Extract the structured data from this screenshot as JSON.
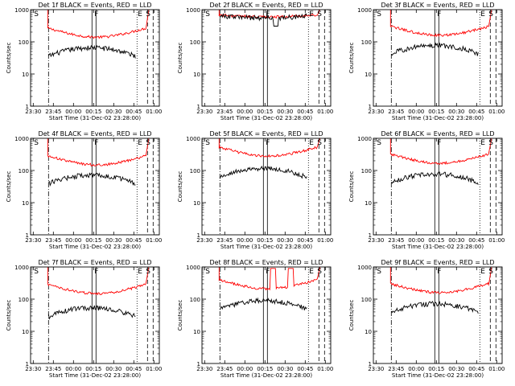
{
  "figure": {
    "layout": "3x3 grid"
  },
  "chart_data": [
    {
      "type": "line",
      "title": "Det 1f BLACK = Events, RED = LLD",
      "ylabel": "Counts/sec",
      "xlabel": "Start Time (31-Dec-02 23:28:00)",
      "x_tick_labels": [
        "23:30",
        "23:45",
        "00:00",
        "00:15",
        "00:30",
        "00:45",
        "01:00"
      ],
      "y_tick_labels": [
        "1",
        "10",
        "100",
        "1000"
      ],
      "ylim": [
        1,
        1000
      ],
      "y_scale": "log",
      "xlim": [
        23.467,
        25.067
      ],
      "x_ticks": [
        23.5,
        23.75,
        24.0,
        24.25,
        24.5,
        24.75,
        25.0
      ],
      "markers": [
        {
          "label": "S",
          "x": 23.5
        },
        {
          "label": "F",
          "x": 24.25
        },
        {
          "label": "E",
          "x": 24.79
        },
        {
          "label": "S",
          "x": 24.89
        }
      ],
      "vlines": [
        {
          "x": 23.69,
          "style": "dashdot"
        },
        {
          "x": 24.23,
          "style": "solid"
        },
        {
          "x": 24.28,
          "style": "solid"
        },
        {
          "x": 24.79,
          "style": "dotted"
        },
        {
          "x": 24.92,
          "style": "dashed"
        },
        {
          "x": 24.99,
          "style": "dashed"
        }
      ],
      "series": [
        {
          "name": "RED = LLD",
          "color": "#ff0000",
          "shape": "bowl",
          "start": 23.68,
          "end": 24.9,
          "level": 140,
          "bump": 0
        },
        {
          "name": "BLACK = Events",
          "color": "#000000",
          "shape": "hump",
          "start": 23.69,
          "end": 24.77,
          "level": 55,
          "bump": 0
        }
      ]
    },
    {
      "type": "line",
      "title": "Det 2f BLACK = Events, RED = LLD",
      "ylabel": "Counts/sec",
      "xlabel": "Start Time (31-Dec-02 23:28:00)",
      "x_tick_labels": [
        "23:30",
        "23:45",
        "00:00",
        "00:15",
        "00:30",
        "00:45",
        "01:00"
      ],
      "y_tick_labels": [
        "1",
        "10",
        "100",
        "1000"
      ],
      "ylim": [
        1,
        1000
      ],
      "y_scale": "log",
      "xlim": [
        23.467,
        25.067
      ],
      "x_ticks": [
        23.5,
        23.75,
        24.0,
        24.25,
        24.5,
        24.75,
        25.0
      ],
      "markers": [
        {
          "label": "S",
          "x": 23.5
        },
        {
          "label": "F",
          "x": 24.25
        },
        {
          "label": "E",
          "x": 24.79
        },
        {
          "label": "S",
          "x": 24.89
        }
      ],
      "vlines": [
        {
          "x": 23.69,
          "style": "dashdot"
        },
        {
          "x": 24.23,
          "style": "solid"
        },
        {
          "x": 24.28,
          "style": "solid"
        },
        {
          "x": 24.79,
          "style": "dotted"
        },
        {
          "x": 24.92,
          "style": "dashed"
        },
        {
          "x": 24.99,
          "style": "dashed"
        }
      ],
      "series": [
        {
          "name": "RED = LLD",
          "color": "#ff0000",
          "shape": "flat",
          "start": 23.68,
          "end": 24.9,
          "level": 600,
          "bump": 0
        },
        {
          "name": "BLACK = Events",
          "color": "#000000",
          "shape": "flat",
          "start": 23.69,
          "end": 24.77,
          "level": 560,
          "bump": 0
        }
      ]
    },
    {
      "type": "line",
      "title": "Det 3f BLACK = Events, RED = LLD",
      "ylabel": "Counts/sec",
      "xlabel": "Start Time (31-Dec-02 23:28:00)",
      "x_tick_labels": [
        "23:30",
        "23:45",
        "00:00",
        "00:15",
        "00:30",
        "00:45",
        "01:00"
      ],
      "y_tick_labels": [
        "1",
        "10",
        "100",
        "1000"
      ],
      "ylim": [
        1,
        1000
      ],
      "y_scale": "log",
      "xlim": [
        23.467,
        25.067
      ],
      "x_ticks": [
        23.5,
        23.75,
        24.0,
        24.25,
        24.5,
        24.75,
        25.0
      ],
      "markers": [
        {
          "label": "S",
          "x": 23.5
        },
        {
          "label": "F",
          "x": 24.25
        },
        {
          "label": "E",
          "x": 24.79
        },
        {
          "label": "S",
          "x": 24.89
        }
      ],
      "vlines": [
        {
          "x": 23.69,
          "style": "dashdot"
        },
        {
          "x": 24.23,
          "style": "solid"
        },
        {
          "x": 24.28,
          "style": "solid"
        },
        {
          "x": 24.79,
          "style": "dotted"
        },
        {
          "x": 24.92,
          "style": "dashed"
        },
        {
          "x": 24.99,
          "style": "dashed"
        }
      ],
      "series": [
        {
          "name": "RED = LLD",
          "color": "#ff0000",
          "shape": "bowl",
          "start": 23.68,
          "end": 24.9,
          "level": 160,
          "bump": 0
        },
        {
          "name": "BLACK = Events",
          "color": "#000000",
          "shape": "hump",
          "start": 23.69,
          "end": 24.77,
          "level": 65,
          "bump": 0
        }
      ]
    },
    {
      "type": "line",
      "title": "Det 4f BLACK = Events, RED = LLD",
      "ylabel": "Counts/sec",
      "xlabel": "Start Time (31-Dec-02 23:28:00)",
      "x_tick_labels": [
        "23:30",
        "23:45",
        "00:00",
        "00:15",
        "00:30",
        "00:45",
        "01:00"
      ],
      "y_tick_labels": [
        "1",
        "10",
        "100",
        "1000"
      ],
      "ylim": [
        1,
        1000
      ],
      "y_scale": "log",
      "xlim": [
        23.467,
        25.067
      ],
      "x_ticks": [
        23.5,
        23.75,
        24.0,
        24.25,
        24.5,
        24.75,
        25.0
      ],
      "markers": [
        {
          "label": "S",
          "x": 23.5
        },
        {
          "label": "F",
          "x": 24.25
        },
        {
          "label": "E",
          "x": 24.79
        },
        {
          "label": "S",
          "x": 24.89
        }
      ],
      "vlines": [
        {
          "x": 23.69,
          "style": "dashdot"
        },
        {
          "x": 24.23,
          "style": "solid"
        },
        {
          "x": 24.28,
          "style": "solid"
        },
        {
          "x": 24.79,
          "style": "dotted"
        },
        {
          "x": 24.92,
          "style": "dashed"
        },
        {
          "x": 24.99,
          "style": "dashed"
        }
      ],
      "series": [
        {
          "name": "RED = LLD",
          "color": "#ff0000",
          "shape": "bowl",
          "start": 23.68,
          "end": 24.9,
          "level": 150,
          "bump": 0
        },
        {
          "name": "BLACK = Events",
          "color": "#000000",
          "shape": "hump",
          "start": 23.69,
          "end": 24.77,
          "level": 60,
          "bump": 0
        }
      ]
    },
    {
      "type": "line",
      "title": "Det 5f BLACK = Events, RED = LLD",
      "ylabel": "Counts/sec",
      "xlabel": "Start Time (31-Dec-02 23:28:00)",
      "x_tick_labels": [
        "23:30",
        "23:45",
        "00:00",
        "00:15",
        "00:30",
        "00:45",
        "01:00"
      ],
      "y_tick_labels": [
        "1",
        "10",
        "100",
        "1000"
      ],
      "ylim": [
        1,
        1000
      ],
      "y_scale": "log",
      "xlim": [
        23.467,
        25.067
      ],
      "x_ticks": [
        23.5,
        23.75,
        24.0,
        24.25,
        24.5,
        24.75,
        25.0
      ],
      "markers": [
        {
          "label": "S",
          "x": 23.5
        },
        {
          "label": "F",
          "x": 24.25
        },
        {
          "label": "E",
          "x": 24.79
        },
        {
          "label": "S",
          "x": 24.89
        }
      ],
      "vlines": [
        {
          "x": 23.69,
          "style": "dashdot"
        },
        {
          "x": 24.23,
          "style": "solid"
        },
        {
          "x": 24.28,
          "style": "solid"
        },
        {
          "x": 24.79,
          "style": "dotted"
        },
        {
          "x": 24.92,
          "style": "dashed"
        },
        {
          "x": 24.99,
          "style": "dashed"
        }
      ],
      "series": [
        {
          "name": "RED = LLD",
          "color": "#ff0000",
          "shape": "bowl",
          "start": 23.68,
          "end": 24.9,
          "level": 280,
          "bump": 0
        },
        {
          "name": "BLACK = Events",
          "color": "#000000",
          "shape": "hump",
          "start": 23.69,
          "end": 24.77,
          "level": 95,
          "bump": 0
        }
      ]
    },
    {
      "type": "line",
      "title": "Det 6f BLACK = Events, RED = LLD",
      "ylabel": "Counts/sec",
      "xlabel": "Start Time (31-Dec-02 23:28:00)",
      "x_tick_labels": [
        "23:30",
        "23:45",
        "00:00",
        "00:15",
        "00:30",
        "00:45",
        "01:00"
      ],
      "y_tick_labels": [
        "1",
        "10",
        "100",
        "1000"
      ],
      "ylim": [
        1,
        1000
      ],
      "y_scale": "log",
      "xlim": [
        23.467,
        25.067
      ],
      "x_ticks": [
        23.5,
        23.75,
        24.0,
        24.25,
        24.5,
        24.75,
        25.0
      ],
      "markers": [
        {
          "label": "S",
          "x": 23.5
        },
        {
          "label": "F",
          "x": 24.25
        },
        {
          "label": "E",
          "x": 24.79
        },
        {
          "label": "S",
          "x": 24.89
        }
      ],
      "vlines": [
        {
          "x": 23.69,
          "style": "dashdot"
        },
        {
          "x": 24.23,
          "style": "solid"
        },
        {
          "x": 24.28,
          "style": "solid"
        },
        {
          "x": 24.79,
          "style": "dotted"
        },
        {
          "x": 24.92,
          "style": "dashed"
        },
        {
          "x": 24.99,
          "style": "dashed"
        }
      ],
      "series": [
        {
          "name": "RED = LLD",
          "color": "#ff0000",
          "shape": "bowl",
          "start": 23.68,
          "end": 24.9,
          "level": 170,
          "bump": 0
        },
        {
          "name": "BLACK = Events",
          "color": "#000000",
          "shape": "hump",
          "start": 23.69,
          "end": 24.77,
          "level": 65,
          "bump": 0
        }
      ]
    },
    {
      "type": "line",
      "title": "Det 7f BLACK = Events, RED = LLD",
      "ylabel": "Counts/sec",
      "xlabel": "Start Time (31-Dec-02 23:28:00)",
      "x_tick_labels": [
        "23:30",
        "23:45",
        "00:00",
        "00:15",
        "00:30",
        "00:45",
        "01:00"
      ],
      "y_tick_labels": [
        "1",
        "10",
        "100",
        "1000"
      ],
      "ylim": [
        1,
        1000
      ],
      "y_scale": "log",
      "xlim": [
        23.467,
        25.067
      ],
      "x_ticks": [
        23.5,
        23.75,
        24.0,
        24.25,
        24.5,
        24.75,
        25.0
      ],
      "markers": [
        {
          "label": "S",
          "x": 23.5
        },
        {
          "label": "F",
          "x": 24.25
        },
        {
          "label": "E",
          "x": 24.79
        },
        {
          "label": "S",
          "x": 24.89
        }
      ],
      "vlines": [
        {
          "x": 23.69,
          "style": "dashdot"
        },
        {
          "x": 24.23,
          "style": "solid"
        },
        {
          "x": 24.28,
          "style": "solid"
        },
        {
          "x": 24.79,
          "style": "dotted"
        },
        {
          "x": 24.92,
          "style": "dashed"
        },
        {
          "x": 24.99,
          "style": "dashed"
        }
      ],
      "series": [
        {
          "name": "RED = LLD",
          "color": "#ff0000",
          "shape": "bowl",
          "start": 23.68,
          "end": 24.9,
          "level": 150,
          "bump": 0
        },
        {
          "name": "BLACK = Events",
          "color": "#000000",
          "shape": "hump",
          "start": 23.69,
          "end": 24.77,
          "level": 45,
          "bump": 0
        }
      ]
    },
    {
      "type": "line",
      "title": "Det 8f BLACK = Events, RED = LLD",
      "ylabel": "Counts/sec",
      "xlabel": "Start Time (31-Dec-02 23:28:00)",
      "x_tick_labels": [
        "23:30",
        "23:45",
        "00:00",
        "00:15",
        "00:30",
        "00:45",
        "01:00"
      ],
      "y_tick_labels": [
        "1",
        "10",
        "100",
        "1000"
      ],
      "ylim": [
        1,
        1000
      ],
      "y_scale": "log",
      "xlim": [
        23.467,
        25.067
      ],
      "x_ticks": [
        23.5,
        23.75,
        24.0,
        24.25,
        24.5,
        24.75,
        25.0
      ],
      "markers": [
        {
          "label": "S",
          "x": 23.5
        },
        {
          "label": "F",
          "x": 24.25
        },
        {
          "label": "E",
          "x": 24.79
        },
        {
          "label": "S",
          "x": 24.89
        }
      ],
      "vlines": [
        {
          "x": 23.69,
          "style": "dashdot"
        },
        {
          "x": 24.23,
          "style": "solid"
        },
        {
          "x": 24.28,
          "style": "solid"
        },
        {
          "x": 24.79,
          "style": "dotted"
        },
        {
          "x": 24.92,
          "style": "dashed"
        },
        {
          "x": 24.99,
          "style": "dashed"
        }
      ],
      "series": [
        {
          "name": "RED = LLD",
          "color": "#ff0000",
          "shape": "bowl",
          "start": 23.68,
          "end": 24.9,
          "level": 210,
          "bump": 1
        },
        {
          "name": "BLACK = Events",
          "color": "#000000",
          "shape": "hump",
          "start": 23.69,
          "end": 24.77,
          "level": 75,
          "bump": 0
        }
      ]
    },
    {
      "type": "line",
      "title": "Det 9f BLACK = Events, RED = LLD",
      "ylabel": "Counts/sec",
      "xlabel": "Start Time (31-Dec-02 23:28:00)",
      "x_tick_labels": [
        "23:30",
        "23:45",
        "00:00",
        "00:15",
        "00:30",
        "00:45",
        "01:00"
      ],
      "y_tick_labels": [
        "1",
        "10",
        "100",
        "1000"
      ],
      "ylim": [
        1,
        1000
      ],
      "y_scale": "log",
      "xlim": [
        23.467,
        25.067
      ],
      "x_ticks": [
        23.5,
        23.75,
        24.0,
        24.25,
        24.5,
        24.75,
        25.0
      ],
      "markers": [
        {
          "label": "S",
          "x": 23.5
        },
        {
          "label": "F",
          "x": 24.25
        },
        {
          "label": "E",
          "x": 24.79
        },
        {
          "label": "S",
          "x": 24.89
        }
      ],
      "vlines": [
        {
          "x": 23.69,
          "style": "dashdot"
        },
        {
          "x": 24.23,
          "style": "solid"
        },
        {
          "x": 24.28,
          "style": "solid"
        },
        {
          "x": 24.79,
          "style": "dotted"
        },
        {
          "x": 24.92,
          "style": "dashed"
        },
        {
          "x": 24.99,
          "style": "dashed"
        }
      ],
      "series": [
        {
          "name": "RED = LLD",
          "color": "#ff0000",
          "shape": "bowl",
          "start": 23.68,
          "end": 24.9,
          "level": 160,
          "bump": 0
        },
        {
          "name": "BLACK = Events",
          "color": "#000000",
          "shape": "hump",
          "start": 23.69,
          "end": 24.77,
          "level": 60,
          "bump": 0
        }
      ]
    }
  ]
}
